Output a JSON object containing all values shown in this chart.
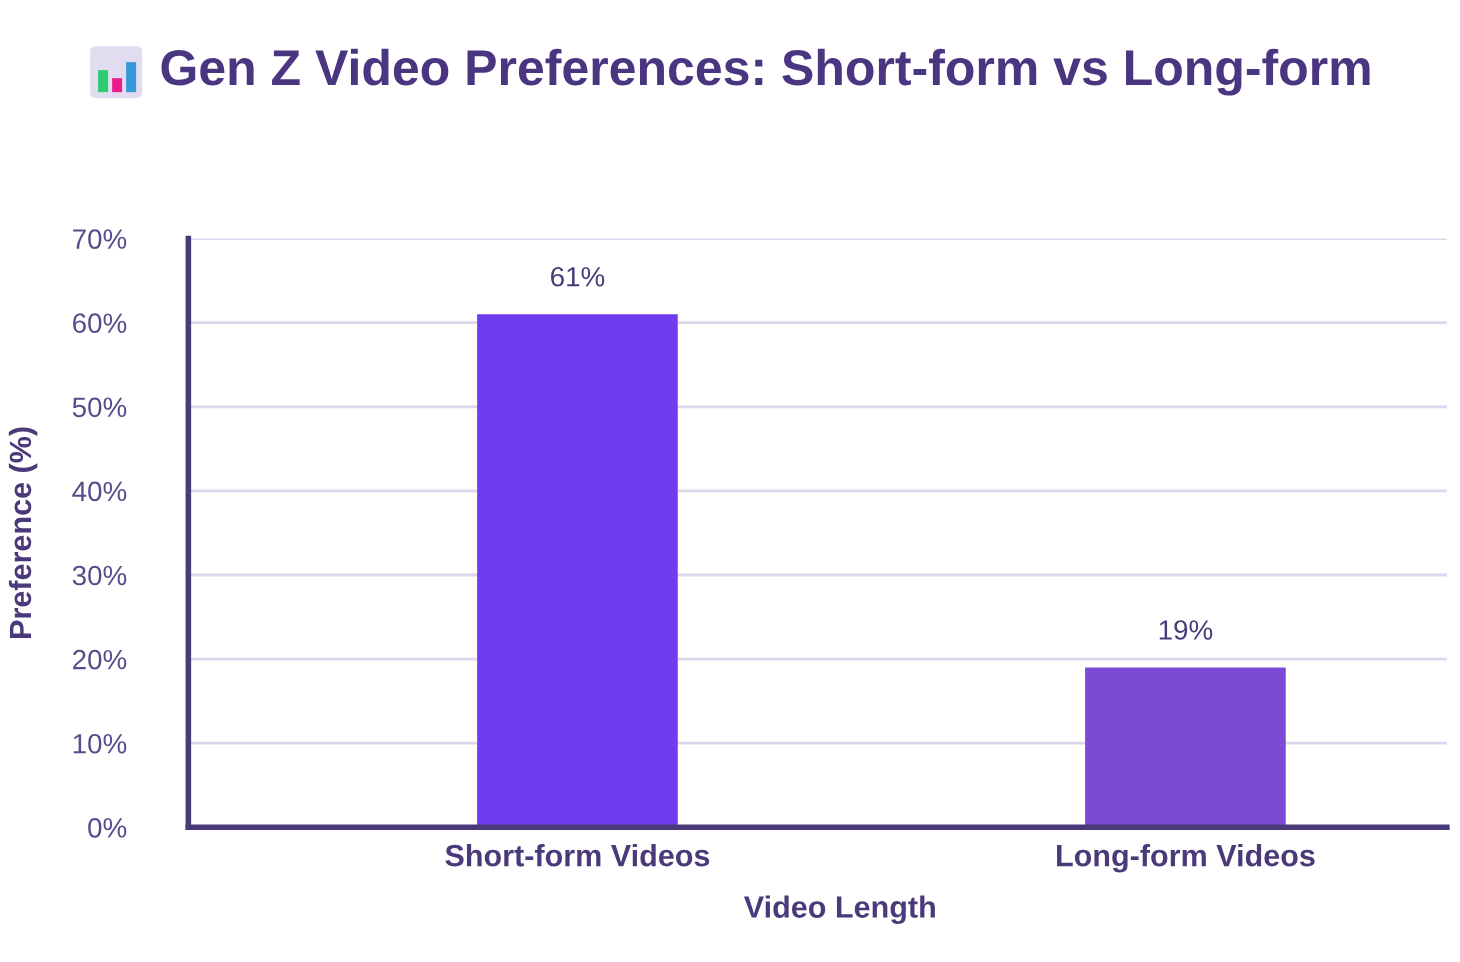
{
  "chart_data": {
    "type": "bar",
    "title": "Gen Z Video Preferences: Short-form vs Long-form",
    "xlabel": "Video Length",
    "ylabel": "Preference (%)",
    "categories": [
      "Short-form Videos",
      "Long-form Videos"
    ],
    "values": [
      61,
      19
    ],
    "colors": [
      "#6f3cf0",
      "#7a4bd4"
    ],
    "value_labels": [
      "61%",
      "19%"
    ],
    "ylim": [
      0,
      70
    ],
    "yticks": [
      {
        "value": 0,
        "label": "0%"
      },
      {
        "value": 10,
        "label": "10%"
      },
      {
        "value": 20,
        "label": "20%"
      },
      {
        "value": 30,
        "label": "30%"
      },
      {
        "value": 40,
        "label": "40%"
      },
      {
        "value": 50,
        "label": "50%"
      },
      {
        "value": 60,
        "label": "60%"
      },
      {
        "value": 70,
        "label": "70%"
      }
    ],
    "grid": "y"
  }
}
